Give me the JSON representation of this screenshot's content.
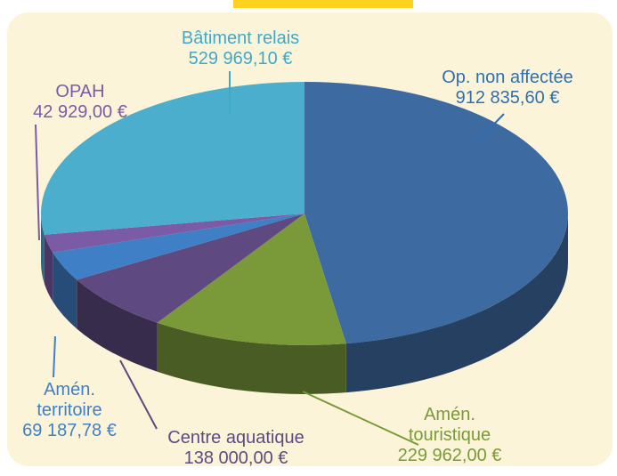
{
  "chart_data": {
    "type": "pie",
    "categories": [
      "Op. non affectée",
      "Amén. touristique",
      "Centre aquatique",
      "Amén. territoire",
      "OPAH",
      "Bâtiment relais"
    ],
    "values": [
      912835.6,
      229962.0,
      138000.0,
      69187.78,
      42929.0,
      529969.1
    ],
    "value_labels": [
      "912 835,60 €",
      "229 962,00 €",
      "138 000,00 €",
      "69 187,78 €",
      "42 929,00 €",
      "529 969,10 €"
    ],
    "colors": [
      "#3d6aa0",
      "#7a9a3a",
      "#5e4a80",
      "#3f7fc6",
      "#7b5aa6",
      "#4aaecc"
    ]
  }
}
